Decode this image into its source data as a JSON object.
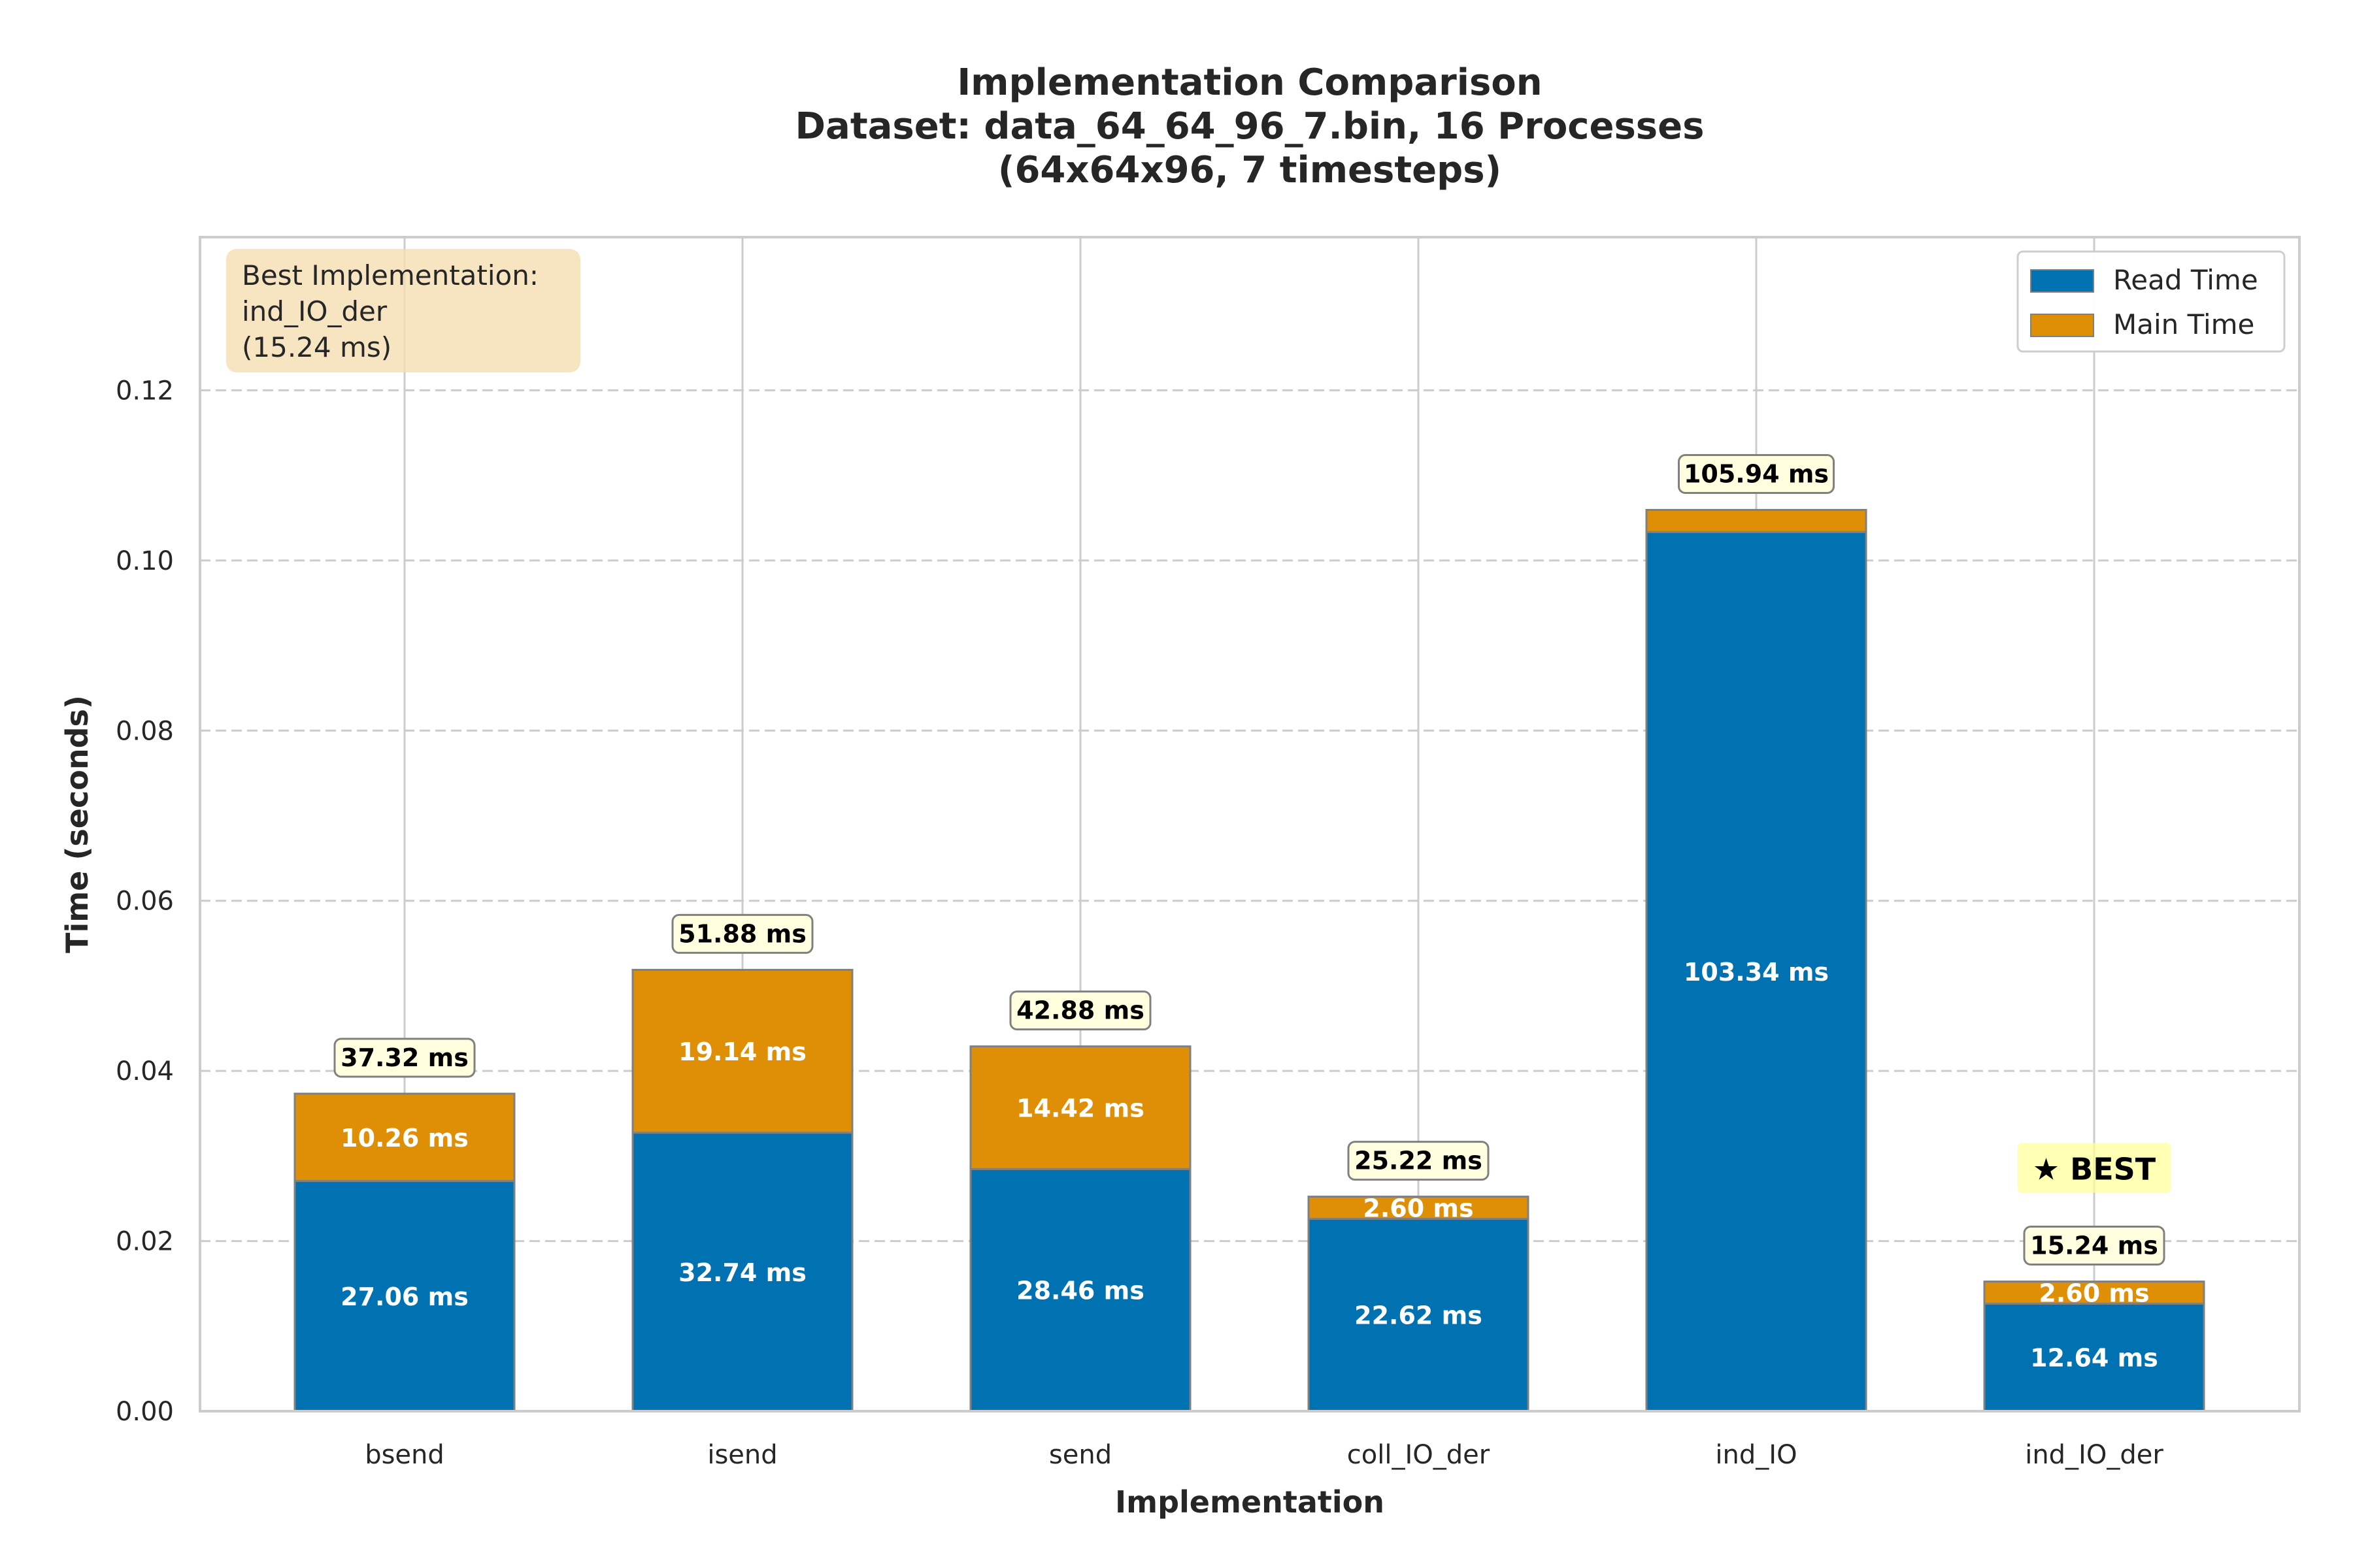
{
  "chart_data": {
    "type": "bar",
    "stacked": true,
    "title_lines": [
      "Implementation Comparison",
      "Dataset: data_64_64_96_7.bin, 16 Processes",
      "(64x64x96, 7 timesteps)"
    ],
    "xlabel": "Implementation",
    "ylabel": "Time (seconds)",
    "ylim": [
      0,
      0.138
    ],
    "yticks": [
      "0.00",
      "0.02",
      "0.04",
      "0.06",
      "0.08",
      "0.10",
      "0.12"
    ],
    "categories": [
      "bsend",
      "isend",
      "send",
      "coll_IO_der",
      "ind_IO",
      "ind_IO_der"
    ],
    "series": [
      {
        "name": "Read Time",
        "color": "#0072b2",
        "values": [
          0.02706,
          0.03274,
          0.02846,
          0.02262,
          0.10334,
          0.01264
        ],
        "labels": [
          "27.06 ms",
          "32.74 ms",
          "28.46 ms",
          "22.62 ms",
          "103.34 ms",
          "12.64 ms"
        ]
      },
      {
        "name": "Main Time",
        "color": "#de8f05",
        "values": [
          0.01026,
          0.01914,
          0.01442,
          0.0026,
          0.0026,
          0.0026
        ],
        "labels": [
          "10.26 ms",
          "19.14 ms",
          "14.42 ms",
          "2.60 ms",
          "",
          "2.60 ms"
        ]
      }
    ],
    "totals": [
      "37.32 ms",
      "51.88 ms",
      "42.88 ms",
      "25.22 ms",
      "105.94 ms",
      "15.24 ms"
    ],
    "best_index": 5,
    "best_label": "★ BEST",
    "info_box": [
      "Best Implementation:",
      "ind_IO_der",
      "(15.24 ms)"
    ],
    "legend": "top-right",
    "grid": {
      "y": true,
      "x": true
    }
  }
}
